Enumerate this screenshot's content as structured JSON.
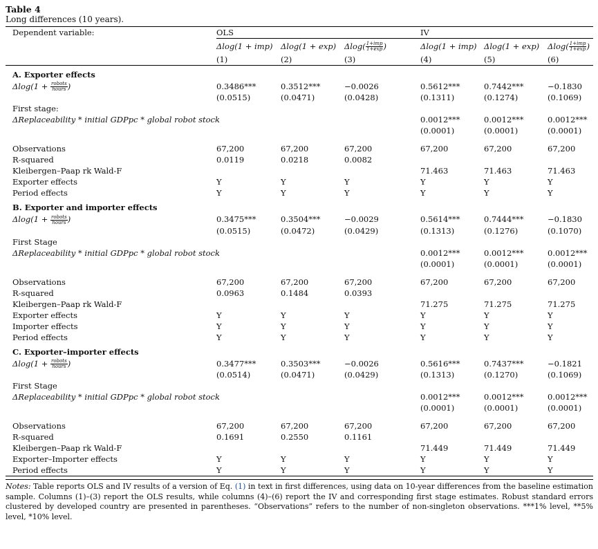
{
  "table_name": "Table 4",
  "caption": "Long differences (10 years).",
  "header": {
    "dep_var": "Dependent variable:",
    "ols": "OLS",
    "iv": "IV",
    "vars": [
      "Δlog(1 + imp)",
      "Δlog(1 + exp)",
      "Δlog(",
      "Δlog(1 + imp)",
      "Δlog(1 + exp)",
      "Δlog("
    ],
    "frac_num": "1+imp",
    "frac_den": "1+exp",
    "frac_close": ")",
    "nums": [
      "(1)",
      "(2)",
      "(3)",
      "(4)",
      "(5)",
      "(6)"
    ]
  },
  "regressor": {
    "prefix": "Δlog(1 + ",
    "num": "robots",
    "den": "hours",
    "close": ")"
  },
  "instrument": "ΔReplaceability * initial GDPpc * global robot stock",
  "sections": [
    {
      "title": "A. Exporter effects",
      "coef": [
        "0.3486***",
        "0.3512***",
        "−0.0026",
        "0.5612***",
        "0.7442***",
        "−0.1830"
      ],
      "se": [
        "(0.0515)",
        "(0.0471)",
        "(0.0428)",
        "(0.1311)",
        "(0.1274)",
        "(0.1069)"
      ],
      "first_stage_label": "First stage:",
      "fs_coef": [
        "0.0012***",
        "0.0012***",
        "0.0012***"
      ],
      "fs_se": [
        "(0.0001)",
        "(0.0001)",
        "(0.0001)"
      ],
      "obs_label": "Observations",
      "obs": [
        "67,200",
        "67,200",
        "67,200",
        "67,200",
        "67,200",
        "67,200"
      ],
      "r2_label": "R-squared",
      "r2": [
        "0.0119",
        "0.0218",
        "0.0082"
      ],
      "kp_label": "Kleibergen–Paap rk Wald-F",
      "kp": [
        "71.463",
        "71.463",
        "71.463"
      ],
      "effects": [
        {
          "label": "Exporter effects",
          "vals": [
            "Y",
            "Y",
            "Y",
            "Y",
            "Y",
            "Y"
          ]
        },
        {
          "label": "Period effects",
          "vals": [
            "Y",
            "Y",
            "Y",
            "Y",
            "Y",
            "Y"
          ]
        }
      ]
    },
    {
      "title": "B. Exporter and importer effects",
      "coef": [
        "0.3475***",
        "0.3504***",
        "−0.0029",
        "0.5614***",
        "0.7444***",
        "−0.1830"
      ],
      "se": [
        "(0.0515)",
        "(0.0472)",
        "(0.0429)",
        "(0.1313)",
        "(0.1276)",
        "(0.1070)"
      ],
      "first_stage_label": "First Stage",
      "fs_coef": [
        "0.0012***",
        "0.0012***",
        "0.0012***"
      ],
      "fs_se": [
        "(0.0001)",
        "(0.0001)",
        "(0.0001)"
      ],
      "obs_label": "Observations",
      "obs": [
        "67,200",
        "67,200",
        "67,200",
        "67,200",
        "67,200",
        "67,200"
      ],
      "r2_label": "R-squared",
      "r2": [
        "0.0963",
        "0.1484",
        "0.0393"
      ],
      "kp_label": "Kleibergen–Paap rk Wald-F",
      "kp": [
        "71.275",
        "71.275",
        "71.275"
      ],
      "effects": [
        {
          "label": "Exporter effects",
          "vals": [
            "Y",
            "Y",
            "Y",
            "Y",
            "Y",
            "Y"
          ]
        },
        {
          "label": "Importer effects",
          "vals": [
            "Y",
            "Y",
            "Y",
            "Y",
            "Y",
            "Y"
          ]
        },
        {
          "label": "Period effects",
          "vals": [
            "Y",
            "Y",
            "Y",
            "Y",
            "Y",
            "Y"
          ]
        }
      ]
    },
    {
      "title": "C. Exporter–importer effects",
      "coef": [
        "0.3477***",
        "0.3503***",
        "−0.0026",
        "0.5616***",
        "0.7437***",
        "−0.1821"
      ],
      "se": [
        "(0.0514)",
        "(0.0471)",
        "(0.0429)",
        "(0.1313)",
        "(0.1270)",
        "(0.1069)"
      ],
      "first_stage_label": "First Stage",
      "fs_coef": [
        "0.0012***",
        "0.0012***",
        "0.0012***"
      ],
      "fs_se": [
        "(0.0001)",
        "(0.0001)",
        "(0.0001)"
      ],
      "obs_label": "Observations",
      "obs": [
        "67,200",
        "67,200",
        "67,200",
        "67,200",
        "67,200",
        "67,200"
      ],
      "r2_label": "R-squared",
      "r2": [
        "0.1691",
        "0.2550",
        "0.1161"
      ],
      "kp_label": "Kleibergen–Paap rk Wald-F",
      "kp": [
        "71.449",
        "71.449",
        "71.449"
      ],
      "effects": [
        {
          "label": "Exporter–Importer effects",
          "vals": [
            "Y",
            "Y",
            "Y",
            "Y",
            "Y",
            "Y"
          ]
        },
        {
          "label": "Period effects",
          "vals": [
            "Y",
            "Y",
            "Y",
            "Y",
            "Y",
            "Y"
          ]
        }
      ]
    }
  ],
  "notes": {
    "label": "Notes:",
    "text1": " Table reports OLS and IV results of a version of Eq. ",
    "link": "(1)",
    "text2": " in text in first differences, using data on 10-year differences from the baseline estimation sample. Columns (1)–(3) report the OLS results, while columns (4)–(6) report the IV and corresponding first stage estimates. Robust standard errors clustered by developed country are presented in parentheses. “Observations” refers to the number of non-singleton observations. ***1% level, **5% level, *10% level."
  }
}
